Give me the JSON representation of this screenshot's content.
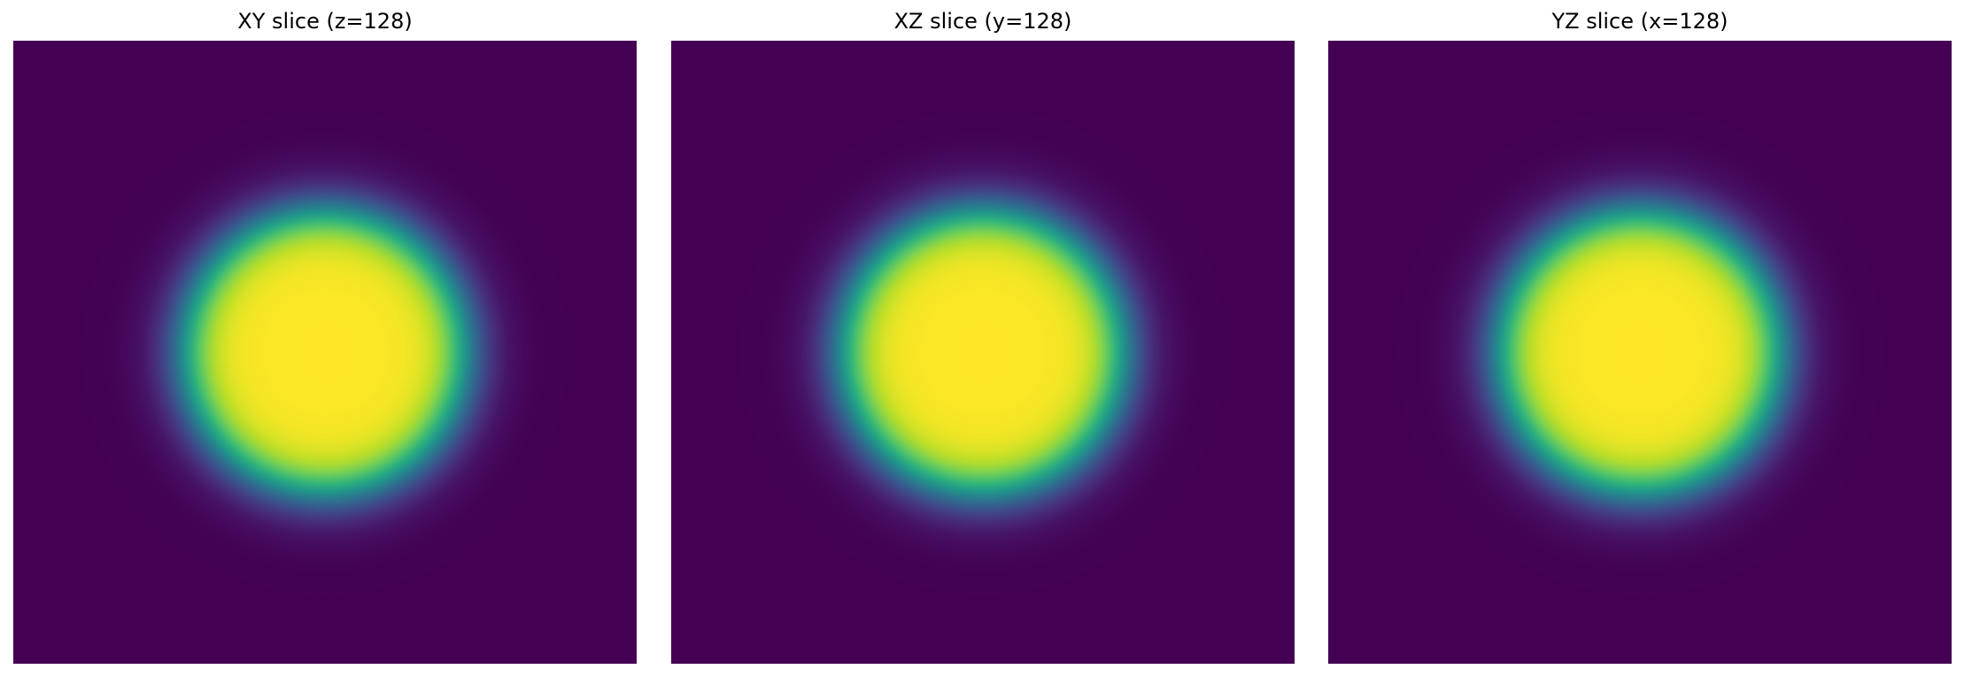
{
  "figure": {
    "panels": [
      {
        "title": "XY slice (z=128)",
        "plane": "XY",
        "fixed_axis": "z",
        "fixed_index": 128,
        "blob": {
          "center": [
            128,
            128
          ],
          "core_radius": 58,
          "edge_width": 26
        }
      },
      {
        "title": "XZ slice (y=128)",
        "plane": "XZ",
        "fixed_axis": "y",
        "fixed_index": 128,
        "blob": {
          "center": [
            128,
            128
          ],
          "core_radius": 58,
          "edge_width": 26
        }
      },
      {
        "title": "YZ slice (x=128)",
        "plane": "YZ",
        "fixed_axis": "x",
        "fixed_index": 128,
        "blob": {
          "center": [
            128,
            128
          ],
          "core_radius": 58,
          "edge_width": 26
        }
      }
    ]
  },
  "chart_data": {
    "type": "heatmap",
    "colormap": "viridis",
    "grid_size": 256,
    "axes_visible": false,
    "value_range": [
      0,
      1
    ],
    "background_color": "#440154",
    "peak_color": "#fde725",
    "panels": [
      {
        "title": "XY slice (z=128)",
        "center": [
          128,
          128
        ],
        "core_radius": 58,
        "edge_width": 26
      },
      {
        "title": "XZ slice (y=128)",
        "center": [
          128,
          128
        ],
        "core_radius": 58,
        "edge_width": 26
      },
      {
        "title": "YZ slice (x=128)",
        "center": [
          128,
          128
        ],
        "core_radius": 58,
        "edge_width": 26
      }
    ]
  }
}
